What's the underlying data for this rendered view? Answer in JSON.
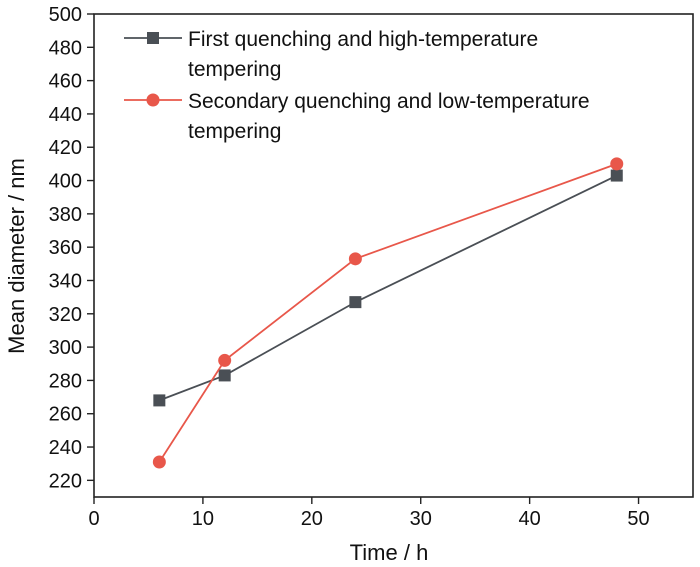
{
  "chart_data": {
    "type": "line",
    "title": "",
    "xlabel": "Time / h",
    "ylabel": "Mean diameter / nm",
    "xlim": [
      0,
      55
    ],
    "ylim": [
      210,
      500
    ],
    "x_ticks": [
      0,
      10,
      20,
      30,
      40,
      50
    ],
    "y_ticks": [
      220,
      240,
      260,
      280,
      300,
      320,
      340,
      360,
      380,
      400,
      420,
      440,
      460,
      480,
      500
    ],
    "grid": false,
    "legend_position": "top-left",
    "series": [
      {
        "name": "First quenching and high-temperature tempering",
        "legend_lines": [
          "First quenching and high-temperature",
          "tempering"
        ],
        "marker": "square",
        "color": "#4a4f55",
        "x": [
          6,
          12,
          24,
          48
        ],
        "y": [
          268,
          283,
          327,
          403
        ]
      },
      {
        "name": "Secondary quenching and low-temperature tempering",
        "legend_lines": [
          "Secondary quenching and low-temperature",
          "tempering"
        ],
        "marker": "circle",
        "color": "#e8574a",
        "x": [
          6,
          12,
          24,
          48
        ],
        "y": [
          231,
          292,
          353,
          410
        ]
      }
    ]
  }
}
